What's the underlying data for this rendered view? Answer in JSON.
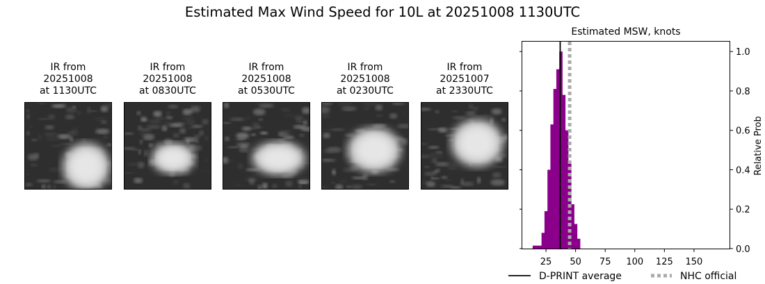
{
  "suptitle": "Estimated Max Wind Speed for 10L at 20251008 1130UTC",
  "panels": [
    {
      "line1": "IR from",
      "line2": "20251008",
      "line3": "at 1130UTC",
      "image": "ir-satellite-storm"
    },
    {
      "line1": "IR from",
      "line2": "20251008",
      "line3": "at 0830UTC",
      "image": "ir-satellite-storm"
    },
    {
      "line1": "IR from",
      "line2": "20251008",
      "line3": "at 0530UTC",
      "image": "ir-satellite-storm"
    },
    {
      "line1": "IR from",
      "line2": "20251008",
      "line3": "at 0230UTC",
      "image": "ir-satellite-storm"
    },
    {
      "line1": "IR from",
      "line2": "20251007",
      "line3": "at 2330UTC",
      "image": "ir-satellite-storm"
    }
  ],
  "chart_data": {
    "type": "bar",
    "title": "Estimated MSW, knots",
    "xlabel": "",
    "ylabel": "Relative Prob",
    "xlim": [
      5,
      180
    ],
    "ylim": [
      0,
      1.05
    ],
    "xticks": [
      25,
      50,
      75,
      100,
      125,
      150
    ],
    "yticks": [
      0.0,
      0.2,
      0.4,
      0.6,
      0.8,
      1.0
    ],
    "ytick_labels": [
      "0.0",
      "0.2",
      "0.4",
      "0.6",
      "0.8",
      "1.0"
    ],
    "y_axis_side": "right",
    "bin_width": 2.5,
    "bins": [
      {
        "x": 15,
        "value": 0.015
      },
      {
        "x": 17.5,
        "value": 0.015
      },
      {
        "x": 20,
        "value": 0.015
      },
      {
        "x": 22.5,
        "value": 0.08
      },
      {
        "x": 25,
        "value": 0.19
      },
      {
        "x": 27.5,
        "value": 0.4
      },
      {
        "x": 30,
        "value": 0.63
      },
      {
        "x": 32.5,
        "value": 0.81
      },
      {
        "x": 35,
        "value": 0.91
      },
      {
        "x": 37.5,
        "value": 1.0
      },
      {
        "x": 40,
        "value": 0.78
      },
      {
        "x": 42.5,
        "value": 0.6
      },
      {
        "x": 45,
        "value": 0.43
      },
      {
        "x": 47.5,
        "value": 0.225
      },
      {
        "x": 50,
        "value": 0.125
      },
      {
        "x": 52.5,
        "value": 0.05
      }
    ],
    "bar_color": "#8b008b",
    "lines": [
      {
        "name": "D-PRINT average",
        "x": 37,
        "color": "#000000",
        "style": "solid"
      },
      {
        "name": "NHC official",
        "x": 45,
        "color": "#aaaaaa",
        "style": "dotted"
      }
    ],
    "legend_placement": "bottom"
  }
}
